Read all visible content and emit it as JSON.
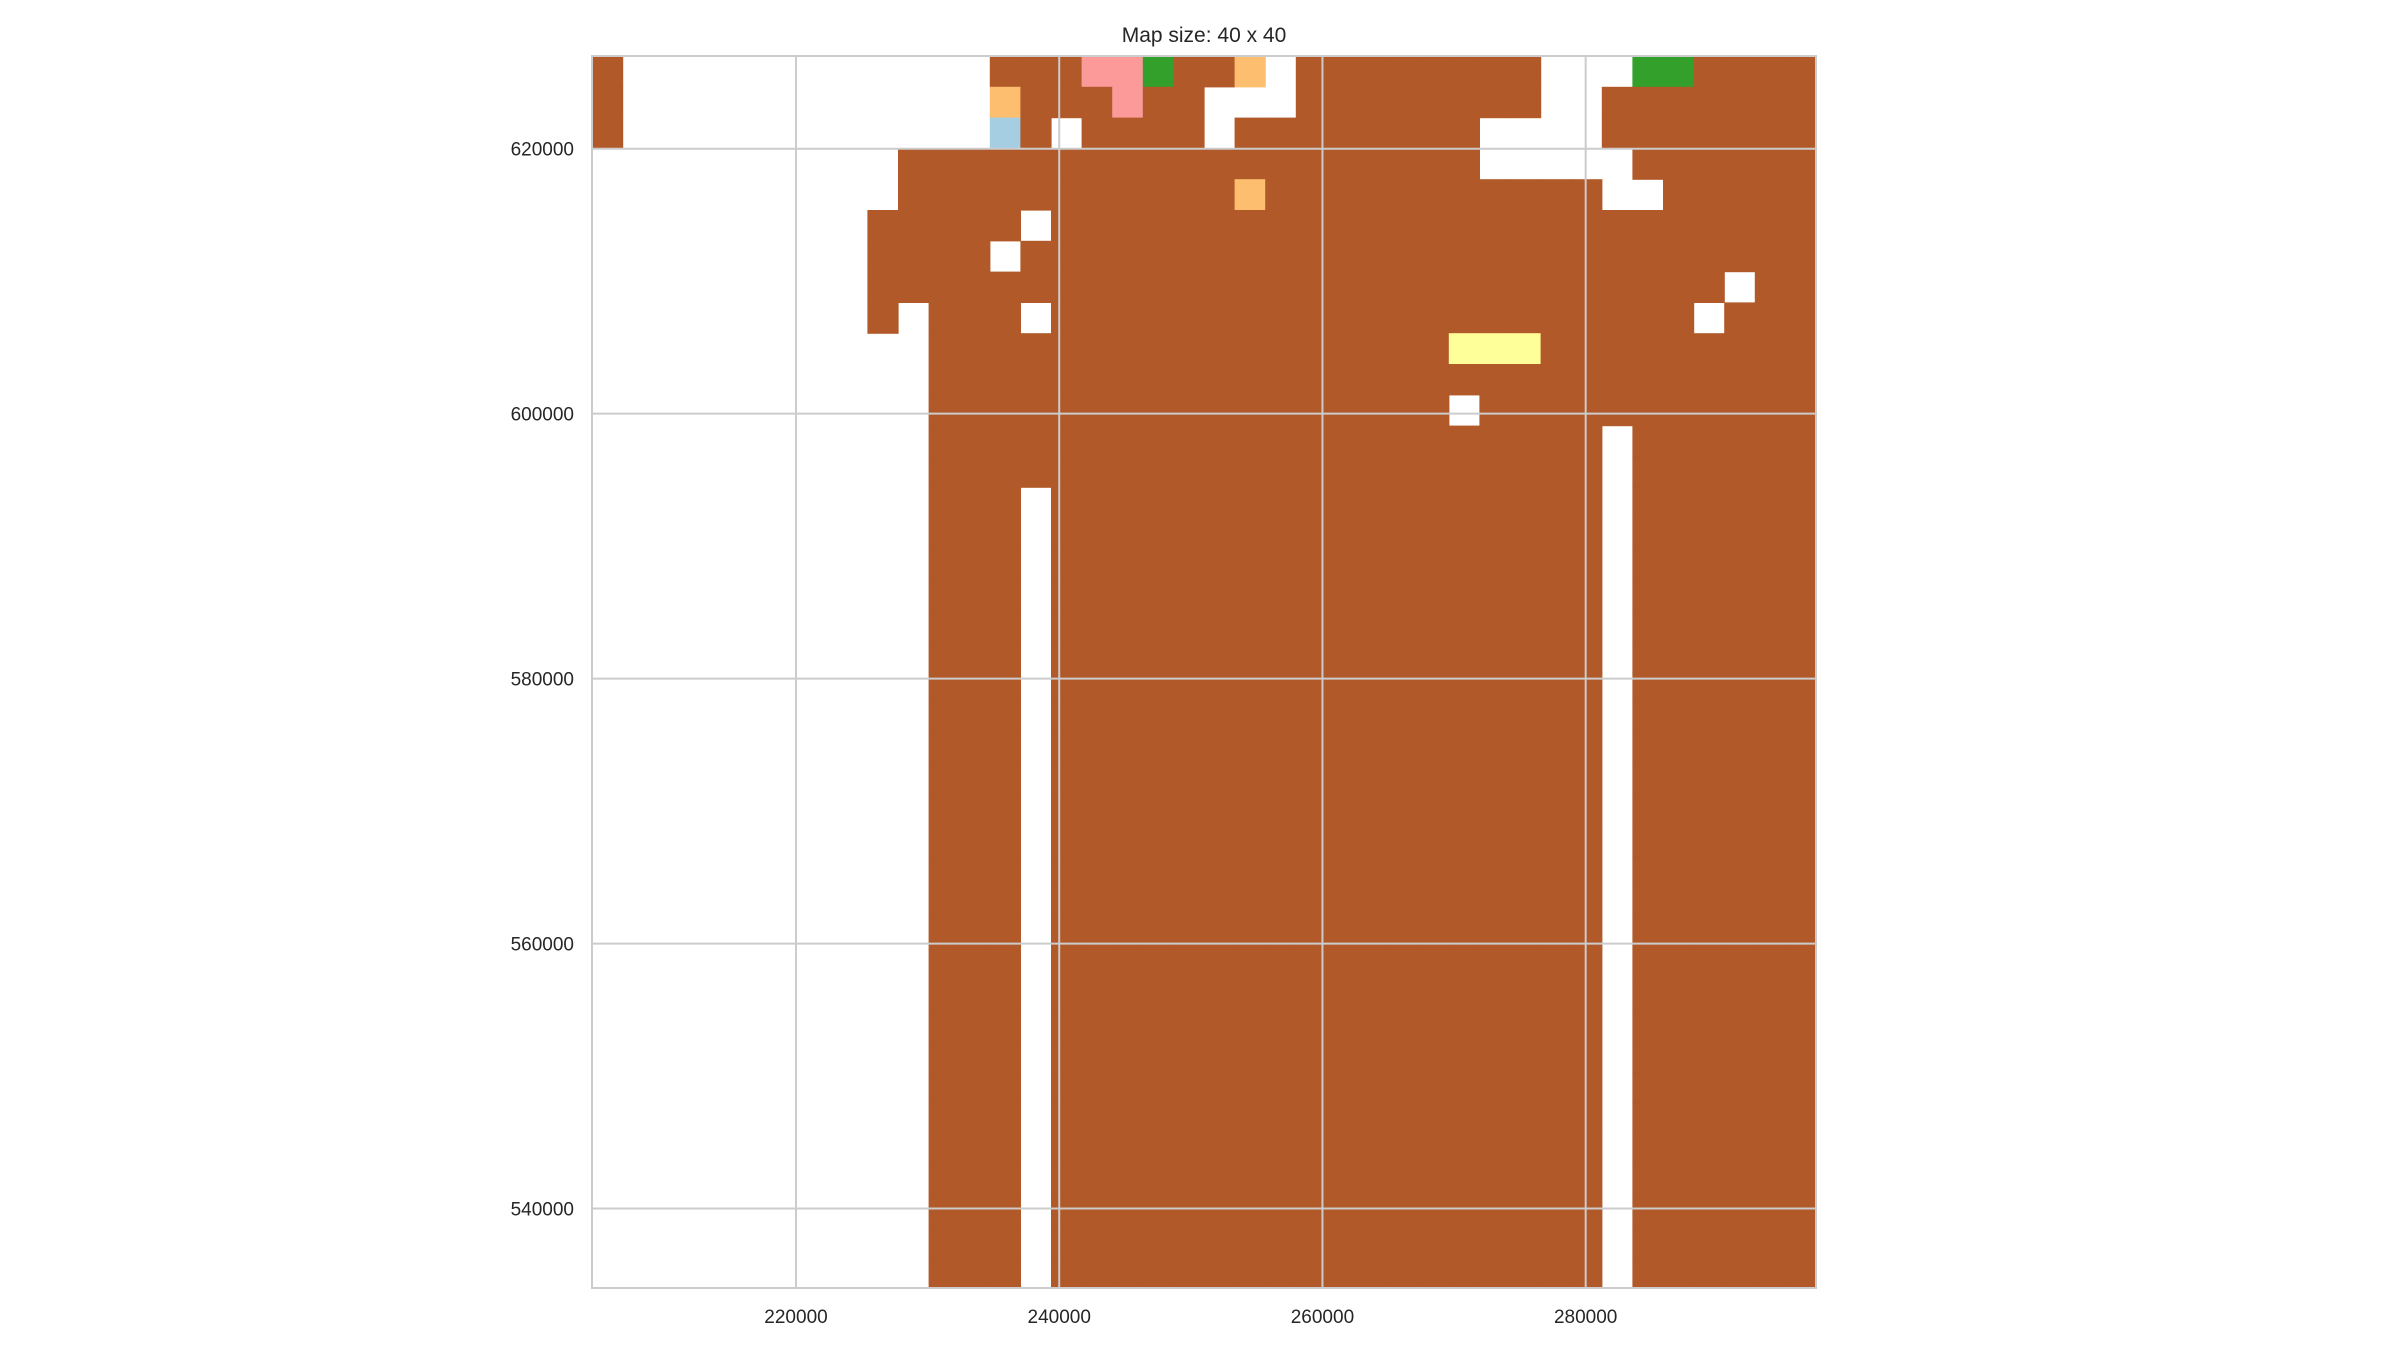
{
  "chart_data": {
    "type": "heatmap",
    "title": "Map size: 40 x 40",
    "xlabel": "",
    "ylabel": "",
    "grid": true,
    "legend": "none",
    "x_ticks": [
      220000,
      240000,
      260000,
      280000
    ],
    "y_ticks": [
      540000,
      560000,
      580000,
      600000,
      620000
    ],
    "x_tick_labels": [
      "220000",
      "240000",
      "260000",
      "280000"
    ],
    "y_tick_labels": [
      "540000",
      "560000",
      "580000",
      "600000",
      "620000"
    ],
    "xlim": [
      204500,
      297500
    ],
    "ylim": [
      534000,
      627000
    ],
    "grid_size": [
      40,
      40
    ],
    "palette": {
      "0": "#ffffff",
      "1": "#b15928",
      "2": "#33a02c",
      "3": "#fb9a99",
      "4": "#fdbf6f",
      "5": "#ff7f00",
      "6": "#ffff99",
      "7": "#a6cee3"
    },
    "rows": [
      "1000000000000111332114011111111000221111",
      "1000000000000411131100011111111001111111",
      "1000000000000710111101111111100001111111",
      "0000000000111111111111111111100000111111",
      "0000000000111111111114111111111110011111",
      "0000000001111101111111111111111111111111",
      "0000000001111011111111111111111111111111",
      "0000000001111111111111111111111111111011",
      "0000000001011101111111111111111111110111",
      "0000000000011111111111111111666111111111",
      "0000000000011111111111111111111111111111",
      "0000000000011111111111111111011111111111",
      "0000000000011111111111111111111110111111",
      "0000000000011111111111111111111110111111",
      "0000000000011101111111111111111110111111",
      "0000000000011101111111111111111110111111",
      "0000000000011101111111111111111110111111",
      "0000000000011101111111111111111110111111",
      "0000000000011101111111111111111110111111",
      "0000000000011101111111111111111110111111",
      "0000000000011101111111111111111110111111",
      "0000000000011101111111111111111110111111",
      "0000000000011101111111111111111110111111",
      "0000000000011101111111111111111110111111",
      "0000000000011101111111111111111110111111",
      "0000000000011101111111111111111110111111",
      "0000000000011101111111111111111110111111",
      "0000000000011101111111111111111110111111",
      "0000000000011101111111111111111110111111",
      "0000000000011101111111111111111110111111",
      "0000000000011101111111111111111110111111",
      "0000000000011101111111111111111110111111",
      "0000000000011101111111111111111110111111",
      "0000000000011101111111111111111110111111",
      "0000000000011101111111111111111110111111",
      "0000000000011101111111111111111110111111",
      "0000000000011101111111111111111110111111",
      "0000000000011101111111111111111110111111",
      "0000000000011101111111111111111110111111",
      "0000000000011101111111111111111110111111"
    ]
  }
}
